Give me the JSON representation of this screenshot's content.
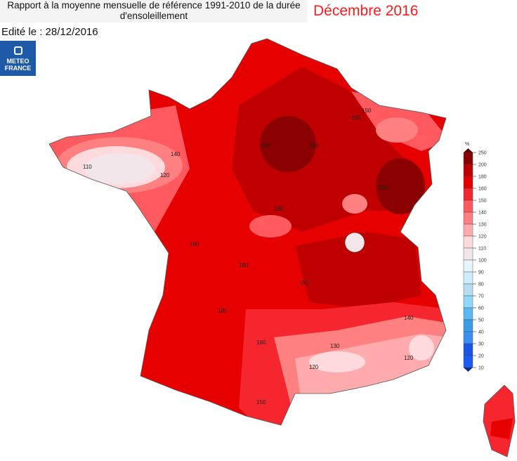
{
  "header": {
    "title_line1": "Rapport à la moyenne mensuelle de référence 1991-2010 de la durée",
    "title_line2": "d'ensoleillement",
    "month": "Décembre 2016",
    "edited": "Edité le : 28/12/2016"
  },
  "logo": {
    "line1": "METEO",
    "line2": "FRANCE"
  },
  "legend": {
    "unit": "%",
    "levels": [
      "250",
      "200",
      "180",
      "160",
      "150",
      "140",
      "130",
      "120",
      "110",
      "100",
      "90",
      "80",
      "70",
      "60",
      "50",
      "40",
      "30",
      "20",
      "10"
    ],
    "colors": [
      "#8b0000",
      "#c00000",
      "#e60000",
      "#f5262e",
      "#ff5a5f",
      "#ff8080",
      "#ffaaad",
      "#ffdadd",
      "#f3e6ea",
      "#e8f4fb",
      "#cdeefd",
      "#b5def3",
      "#8dd8fb",
      "#5ab8f5",
      "#3a9de8",
      "#3a8ff0",
      "#1a55e8",
      "#1a5af5"
    ]
  },
  "contour_labels": [
    "110",
    "120",
    "140",
    "150",
    "160",
    "180",
    "200",
    "130",
    "120",
    "120",
    "140",
    "150",
    "160",
    "180",
    "200",
    "150",
    "160",
    "180",
    "200"
  ]
}
